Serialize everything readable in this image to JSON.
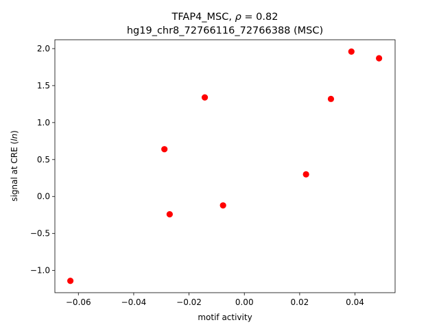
{
  "chart_data": {
    "type": "scatter",
    "title_line1_prefix": "TFAP4_MSC, ",
    "title_line1_rho": "ρ",
    "title_line1_suffix": " = 0.82",
    "title_line2": "hg19_chr8_72766116_72766388 (MSC)",
    "xlabel": "motif activity",
    "ylabel": "signal at CRE (ln)",
    "ylabel_prefix": "signal at CRE (",
    "ylabel_italic": "ln",
    "ylabel_suffix": ")",
    "xlim": [
      -0.0685,
      0.0545
    ],
    "ylim": [
      -1.3,
      2.12
    ],
    "x_ticks": [
      -0.06,
      -0.04,
      -0.02,
      0.0,
      0.02,
      0.04
    ],
    "x_tick_labels": [
      "−0.06",
      "−0.04",
      "−0.02",
      "0.00",
      "0.02",
      "0.04"
    ],
    "y_ticks": [
      -1.0,
      -0.5,
      0.0,
      0.5,
      1.0,
      1.5,
      2.0
    ],
    "y_tick_labels": [
      "−1.0",
      "−0.5",
      "0.0",
      "0.5",
      "1.0",
      "1.5",
      "2.0"
    ],
    "grid": false,
    "marker_color": "#ff0000",
    "points": [
      {
        "x": -0.0629,
        "y": -1.14
      },
      {
        "x": -0.0289,
        "y": 0.64
      },
      {
        "x": -0.027,
        "y": -0.24
      },
      {
        "x": -0.0143,
        "y": 1.34
      },
      {
        "x": -0.0077,
        "y": -0.12
      },
      {
        "x": 0.0223,
        "y": 0.3
      },
      {
        "x": 0.0313,
        "y": 1.32
      },
      {
        "x": 0.0387,
        "y": 1.96
      },
      {
        "x": 0.0487,
        "y": 1.87
      }
    ]
  }
}
